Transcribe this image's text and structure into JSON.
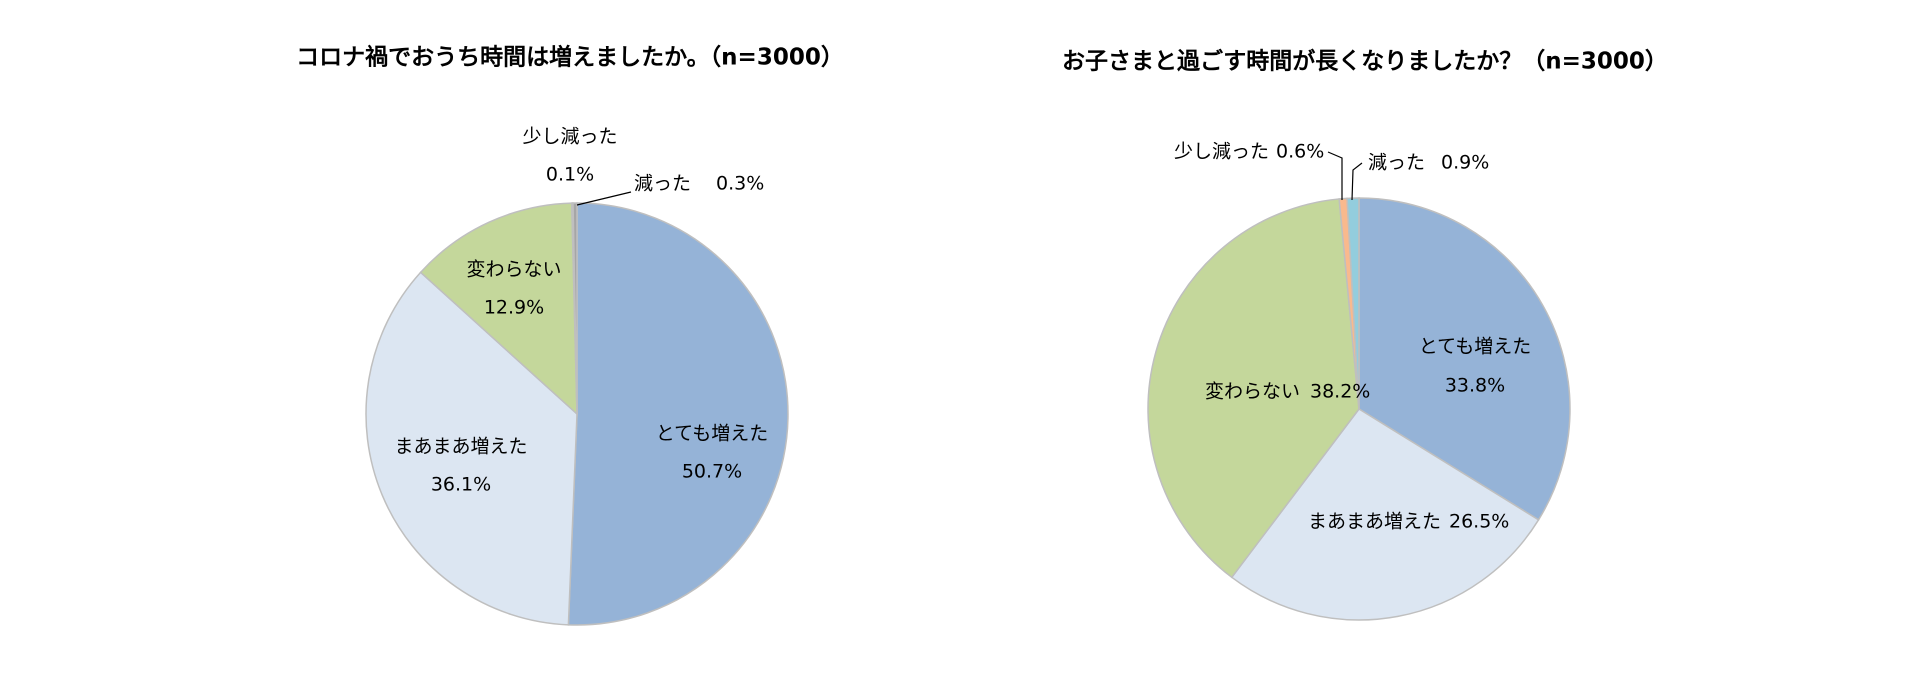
{
  "chart_data": [
    {
      "type": "pie",
      "title": "コロナ禍でおうち時間は増えましたか。（n=3000）",
      "categories": [
        "とても増えた",
        "まあまあ増えた",
        "変わらない",
        "少し減った",
        "減った"
      ],
      "values": [
        50.7,
        36.1,
        12.9,
        0.1,
        0.3
      ],
      "value_labels": [
        "50.7%",
        "36.1%",
        "12.9%",
        "0.1%",
        "0.3%"
      ],
      "colors": [
        "#95b3d7",
        "#dce6f2",
        "#c4d79b",
        "#f9b98d",
        "#a6a6a6"
      ]
    },
    {
      "type": "pie",
      "title": "お子さまと過ごす時間が長くなりましたか？（n=3000）",
      "categories": [
        "とても増えた",
        "まあまあ増えた",
        "変わらない",
        "少し減った",
        "減った"
      ],
      "values": [
        33.8,
        26.5,
        38.2,
        0.6,
        0.9
      ],
      "value_labels": [
        "33.8%",
        "26.5%",
        "38.2%",
        "0.6%",
        "0.9%"
      ],
      "colors": [
        "#95b3d7",
        "#dce6f2",
        "#c4d79b",
        "#f9b98d",
        "#93cddd"
      ]
    }
  ]
}
